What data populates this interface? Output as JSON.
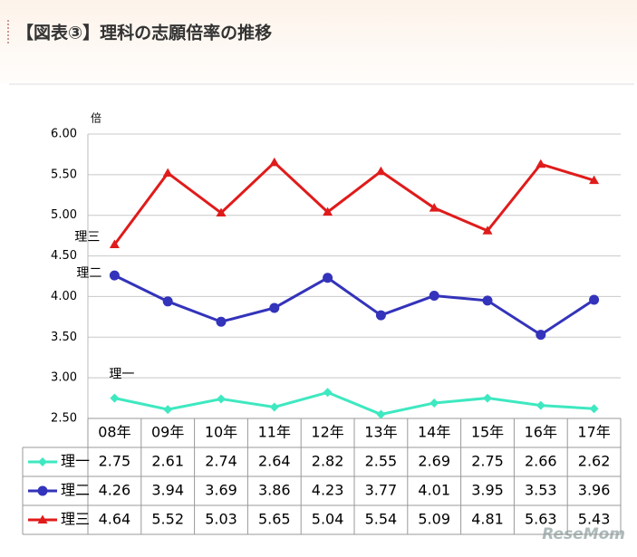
{
  "title": "【図表③】理科の志願倍率の推移",
  "watermark": "ReseMom",
  "chart_data": {
    "type": "line",
    "y_unit": "倍",
    "categories": [
      "08年",
      "09年",
      "10年",
      "11年",
      "12年",
      "13年",
      "14年",
      "15年",
      "16年",
      "17年"
    ],
    "series": [
      {
        "name": "理一",
        "color": "#3ee8c0",
        "marker": "diamond",
        "values": [
          2.75,
          2.61,
          2.74,
          2.64,
          2.82,
          2.55,
          2.69,
          2.75,
          2.66,
          2.62
        ]
      },
      {
        "name": "理二",
        "color": "#3333bb",
        "marker": "circle",
        "values": [
          4.26,
          3.94,
          3.69,
          3.86,
          4.23,
          3.77,
          4.01,
          3.95,
          3.53,
          3.96
        ]
      },
      {
        "name": "理三",
        "color": "#e01b1b",
        "marker": "triangle",
        "values": [
          4.64,
          5.52,
          5.03,
          5.65,
          5.04,
          5.54,
          5.09,
          4.81,
          5.63,
          5.43
        ]
      }
    ],
    "ylim": [
      2.5,
      6
    ],
    "yticks": [
      {
        "value": 2.5,
        "label": "2.50"
      },
      {
        "value": 3,
        "label": "3.00"
      },
      {
        "value": 3.5,
        "label": "3.50"
      },
      {
        "value": 4,
        "label": "4.00"
      },
      {
        "value": 4.5,
        "label": "4.50"
      },
      {
        "value": 5,
        "label": "5.00"
      },
      {
        "value": 5.5,
        "label": "5.50"
      },
      {
        "value": 6,
        "label": "6.00"
      }
    ],
    "grid": true,
    "data_table": true
  }
}
